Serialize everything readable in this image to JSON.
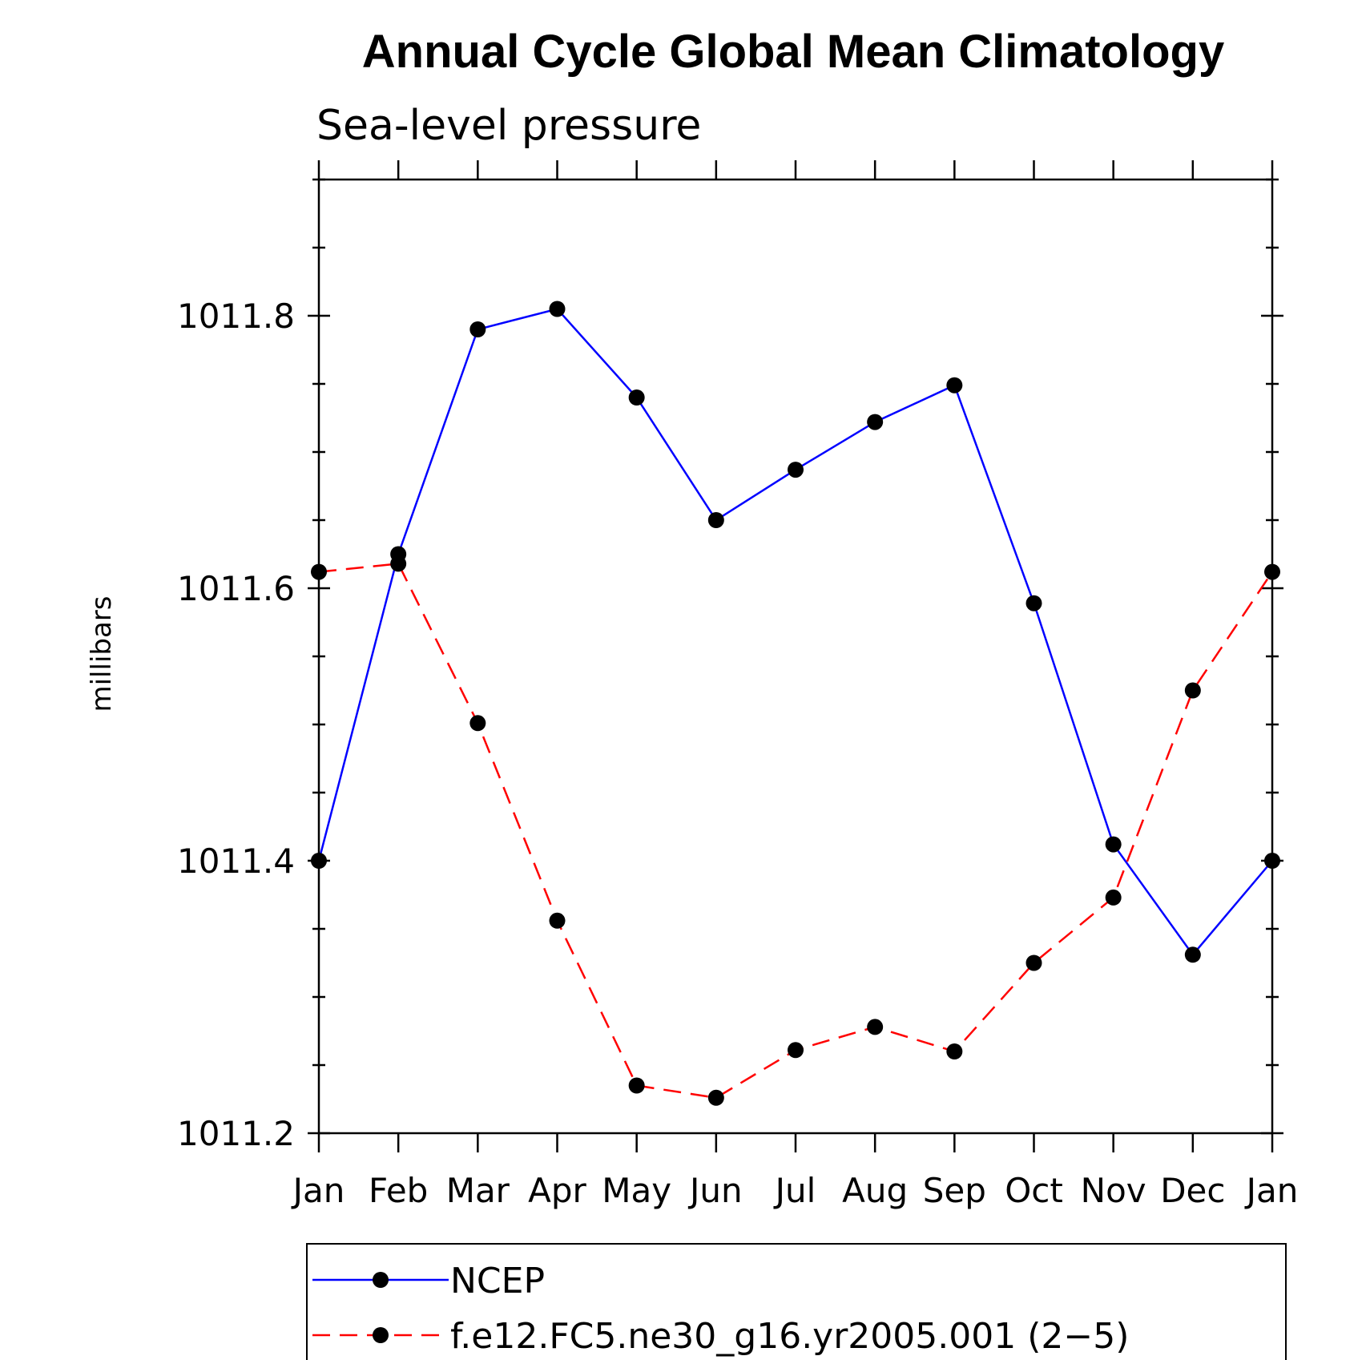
{
  "chart_data": {
    "type": "line",
    "title": "Annual Cycle Global Mean Climatology",
    "subtitle": "Sea-level pressure",
    "xlabel": "",
    "ylabel": "millibars",
    "categories": [
      "Jan",
      "Feb",
      "Mar",
      "Apr",
      "May",
      "Jun",
      "Jul",
      "Aug",
      "Sep",
      "Oct",
      "Nov",
      "Dec",
      "Jan"
    ],
    "ylim": [
      1011.2,
      1011.9
    ],
    "yticks": [
      1011.2,
      1011.4,
      1011.6,
      1011.8
    ],
    "ytick_labels": [
      "1011.2",
      "1011.4",
      "1011.6",
      "1011.8"
    ],
    "grid": false,
    "legend_position": "bottom",
    "series": [
      {
        "name": "NCEP",
        "color": "#0000ff",
        "line_style": "solid",
        "marker": "filled-circle",
        "values": [
          1011.4,
          1011.625,
          1011.79,
          1011.805,
          1011.74,
          1011.65,
          1011.687,
          1011.722,
          1011.749,
          1011.589,
          1011.412,
          1011.331,
          1011.4
        ]
      },
      {
        "name": "f.e12.FC5.ne30_g16.yr2005.001 (2−5)",
        "color": "#ff0000",
        "line_style": "dashed",
        "marker": "filled-circle",
        "values": [
          1011.612,
          1011.618,
          1011.501,
          1011.356,
          1011.235,
          1011.226,
          1011.261,
          1011.278,
          1011.26,
          1011.325,
          1011.373,
          1011.525,
          1011.612
        ]
      }
    ]
  }
}
